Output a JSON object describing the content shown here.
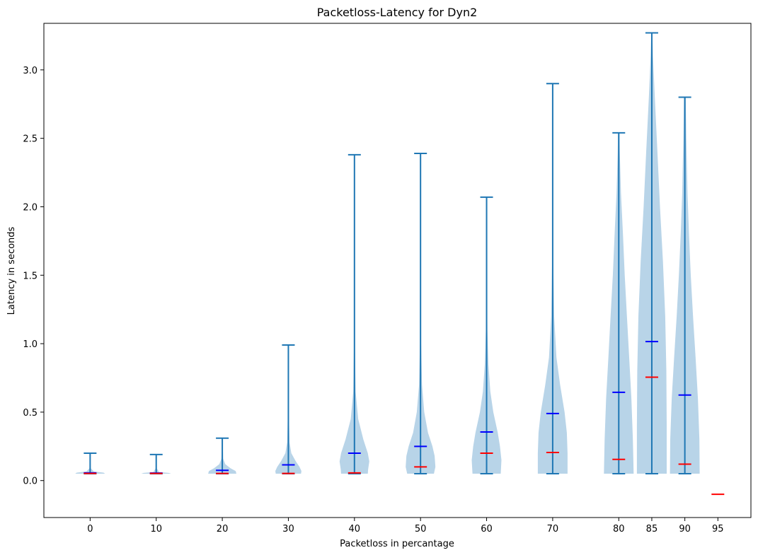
{
  "chart_data": {
    "type": "violin",
    "title": "Packetloss-Latency for Dyn2",
    "xlabel": "Packetloss in percantage",
    "ylabel": "Latency in seconds",
    "ylim": [
      -0.27,
      3.34
    ],
    "yticks": [
      0.0,
      0.5,
      1.0,
      1.5,
      2.0,
      2.5,
      3.0
    ],
    "ytick_labels": [
      "0.0",
      "0.5",
      "1.0",
      "1.5",
      "2.0",
      "2.5",
      "3.0"
    ],
    "xlim": [
      -7,
      100
    ],
    "categories": [
      "0",
      "10",
      "20",
      "30",
      "40",
      "50",
      "60",
      "70",
      "80",
      "85",
      "90",
      "95"
    ],
    "x": [
      0,
      10,
      20,
      30,
      40,
      50,
      60,
      70,
      80,
      85,
      90,
      95
    ],
    "colors": {
      "body": "#b8d4e8",
      "line": "#1f77b4",
      "mean": "#0000ff",
      "median": "#ff0000",
      "axis": "#000000"
    },
    "series": [
      {
        "name": "0",
        "min": 0.05,
        "max": 0.2,
        "mean": 0.056,
        "median": 0.052,
        "profile": [
          [
            0.05,
            1.0
          ],
          [
            0.058,
            0.9
          ],
          [
            0.066,
            0.25
          ],
          [
            0.09,
            0.04
          ],
          [
            0.2,
            0.01
          ]
        ]
      },
      {
        "name": "10",
        "min": 0.05,
        "max": 0.19,
        "mean": 0.055,
        "median": 0.052,
        "profile": [
          [
            0.05,
            1.0
          ],
          [
            0.056,
            0.85
          ],
          [
            0.062,
            0.2
          ],
          [
            0.09,
            0.03
          ],
          [
            0.19,
            0.01
          ]
        ]
      },
      {
        "name": "20",
        "min": 0.05,
        "max": 0.31,
        "mean": 0.075,
        "median": 0.052,
        "profile": [
          [
            0.05,
            0.95
          ],
          [
            0.07,
            0.9
          ],
          [
            0.09,
            0.55
          ],
          [
            0.12,
            0.2
          ],
          [
            0.16,
            0.06
          ],
          [
            0.31,
            0.02
          ]
        ]
      },
      {
        "name": "30",
        "min": 0.05,
        "max": 0.99,
        "mean": 0.115,
        "median": 0.052,
        "profile": [
          [
            0.05,
            0.85
          ],
          [
            0.07,
            0.88
          ],
          [
            0.1,
            0.75
          ],
          [
            0.14,
            0.5
          ],
          [
            0.2,
            0.2
          ],
          [
            0.28,
            0.08
          ],
          [
            0.5,
            0.03
          ],
          [
            0.99,
            0.02
          ]
        ]
      },
      {
        "name": "40",
        "min": 0.05,
        "max": 2.38,
        "mean": 0.2,
        "median": 0.056,
        "profile": [
          [
            0.05,
            0.9
          ],
          [
            0.08,
            0.92
          ],
          [
            0.14,
            1.0
          ],
          [
            0.2,
            0.9
          ],
          [
            0.3,
            0.6
          ],
          [
            0.45,
            0.25
          ],
          [
            0.65,
            0.08
          ],
          [
            1.0,
            0.03
          ],
          [
            2.38,
            0.01
          ]
        ]
      },
      {
        "name": "50",
        "min": 0.05,
        "max": 2.39,
        "mean": 0.25,
        "median": 0.1,
        "profile": [
          [
            0.05,
            0.9
          ],
          [
            0.1,
            1.0
          ],
          [
            0.18,
            0.95
          ],
          [
            0.25,
            0.8
          ],
          [
            0.35,
            0.5
          ],
          [
            0.5,
            0.25
          ],
          [
            0.7,
            0.1
          ],
          [
            1.0,
            0.04
          ],
          [
            2.39,
            0.01
          ]
        ]
      },
      {
        "name": "60",
        "min": 0.05,
        "max": 2.07,
        "mean": 0.355,
        "median": 0.2,
        "profile": [
          [
            0.05,
            0.95
          ],
          [
            0.15,
            1.0
          ],
          [
            0.25,
            0.9
          ],
          [
            0.35,
            0.75
          ],
          [
            0.5,
            0.45
          ],
          [
            0.65,
            0.25
          ],
          [
            0.85,
            0.12
          ],
          [
            1.1,
            0.05
          ],
          [
            1.5,
            0.02
          ],
          [
            2.07,
            0.01
          ]
        ]
      },
      {
        "name": "70",
        "min": 0.05,
        "max": 2.9,
        "mean": 0.49,
        "median": 0.205,
        "profile": [
          [
            0.05,
            1.0
          ],
          [
            0.2,
            1.0
          ],
          [
            0.35,
            0.95
          ],
          [
            0.5,
            0.8
          ],
          [
            0.7,
            0.5
          ],
          [
            0.9,
            0.25
          ],
          [
            1.2,
            0.1
          ],
          [
            1.6,
            0.04
          ],
          [
            2.2,
            0.015
          ],
          [
            2.9,
            0.01
          ]
        ]
      },
      {
        "name": "80",
        "min": 0.05,
        "max": 2.54,
        "mean": 0.645,
        "median": 0.155,
        "profile": [
          [
            0.05,
            1.0
          ],
          [
            0.3,
            0.95
          ],
          [
            0.6,
            0.85
          ],
          [
            0.9,
            0.7
          ],
          [
            1.2,
            0.55
          ],
          [
            1.5,
            0.4
          ],
          [
            1.8,
            0.28
          ],
          [
            2.1,
            0.15
          ],
          [
            2.4,
            0.07
          ],
          [
            2.54,
            0.05
          ]
        ]
      },
      {
        "name": "85",
        "min": 0.05,
        "max": 3.27,
        "mean": 1.015,
        "median": 0.755,
        "profile": [
          [
            0.05,
            1.0
          ],
          [
            0.4,
            1.0
          ],
          [
            0.8,
            0.98
          ],
          [
            1.2,
            0.9
          ],
          [
            1.6,
            0.75
          ],
          [
            2.0,
            0.55
          ],
          [
            2.4,
            0.38
          ],
          [
            2.8,
            0.2
          ],
          [
            3.1,
            0.08
          ],
          [
            3.27,
            0.03
          ]
        ]
      },
      {
        "name": "90",
        "min": 0.05,
        "max": 2.8,
        "mean": 0.625,
        "median": 0.12,
        "profile": [
          [
            0.05,
            1.0
          ],
          [
            0.3,
            0.98
          ],
          [
            0.6,
            0.88
          ],
          [
            0.9,
            0.72
          ],
          [
            1.2,
            0.55
          ],
          [
            1.5,
            0.4
          ],
          [
            1.8,
            0.28
          ],
          [
            2.1,
            0.18
          ],
          [
            2.5,
            0.1
          ],
          [
            2.8,
            0.06
          ]
        ]
      },
      {
        "name": "95",
        "min": null,
        "max": null,
        "mean": null,
        "median": -0.1,
        "profile": []
      }
    ]
  }
}
